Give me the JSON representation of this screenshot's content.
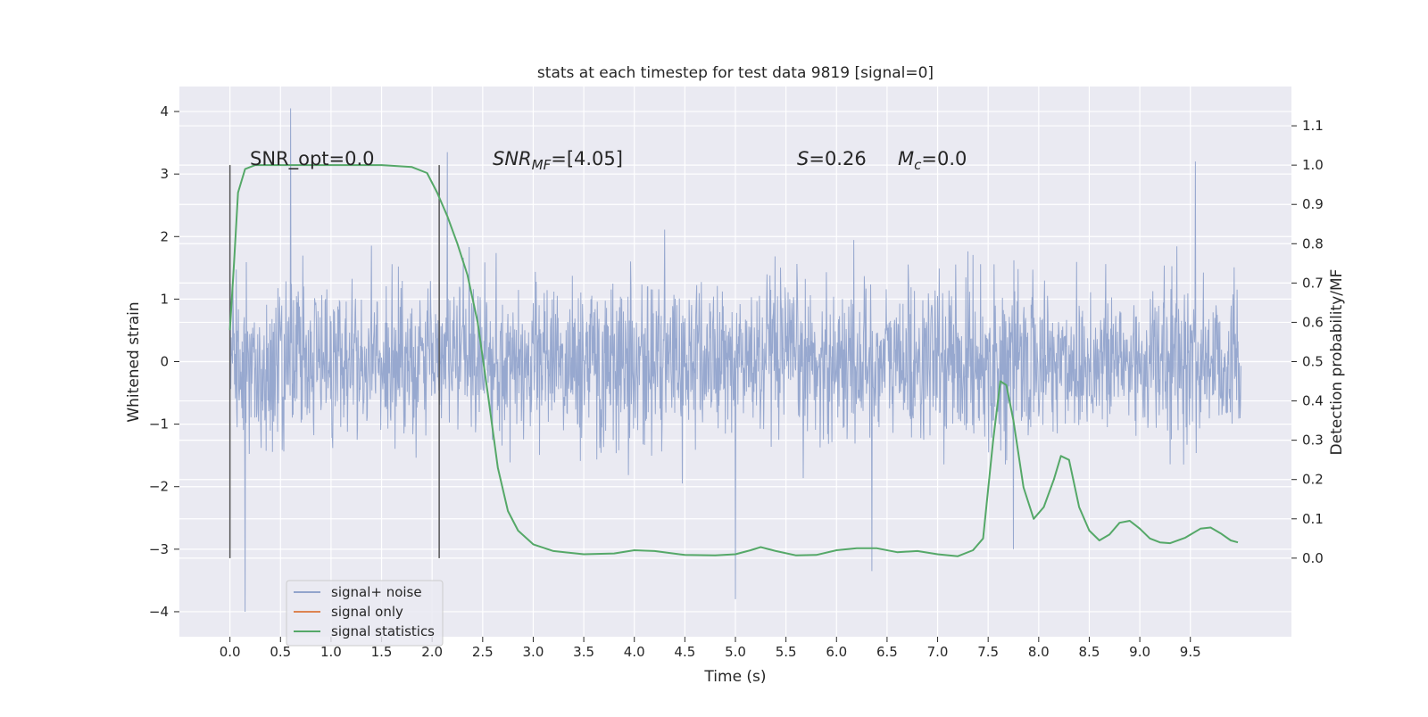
{
  "chart_data": {
    "type": "line",
    "title": "stats at each timestep for test data 9819 [signal=0]",
    "xlabel": "Time (s)",
    "ylabel": "Whitened strain",
    "y2label": "Detection probability/MF",
    "xlim": [
      -0.5,
      10.5
    ],
    "ylim": [
      -4.4,
      4.4
    ],
    "y2lim": [
      -0.2,
      1.2
    ],
    "x_ticks": [
      "0.0",
      "0.5",
      "1.0",
      "1.5",
      "2.0",
      "2.5",
      "3.0",
      "3.5",
      "4.0",
      "4.5",
      "5.0",
      "5.5",
      "6.0",
      "6.5",
      "7.0",
      "7.5",
      "8.0",
      "8.5",
      "9.0",
      "9.5"
    ],
    "y_ticks": [
      "−4",
      "−3",
      "−2",
      "−1",
      "0",
      "1",
      "2",
      "3",
      "4"
    ],
    "y2_ticks": [
      "0.0",
      "0.1",
      "0.2",
      "0.3",
      "0.4",
      "0.5",
      "0.6",
      "0.7",
      "0.8",
      "0.9",
      "1.0",
      "1.1"
    ],
    "grid": true,
    "legend_placement": "lower-left",
    "annotations": {
      "snr_opt": "SNR_opt=0.0",
      "snr_mf_base": "SNR",
      "snr_mf_sub": "MF",
      "snr_mf_value": "=[4.05]",
      "s_label": "S",
      "s_value": "=0.26",
      "mc_base": "M",
      "mc_sub": "c",
      "mc_value": "=0.0"
    },
    "vertical_markers": [
      0.0,
      2.07
    ],
    "vertical_marker_y2_range": [
      0.0,
      1.0
    ],
    "series": [
      {
        "name": "signal+ noise",
        "color": "#92a4cc",
        "axis": "left",
        "x_range": [
          0.0,
          10.0
        ],
        "sigma": 0.62,
        "spikes": [
          [
            0.6,
            4.05
          ],
          [
            0.15,
            -4.0
          ],
          [
            5.0,
            -3.8
          ],
          [
            6.35,
            -3.35
          ],
          [
            2.15,
            3.35
          ],
          [
            9.55,
            3.2
          ],
          [
            7.75,
            -3.0
          ]
        ]
      },
      {
        "name": "signal only",
        "color": "#dd8452",
        "axis": "left",
        "x": [],
        "y": []
      },
      {
        "name": "signal statistics",
        "color": "#55a868",
        "axis": "right",
        "x": [
          0.0,
          0.04,
          0.08,
          0.15,
          0.25,
          0.4,
          0.6,
          1.0,
          1.5,
          1.8,
          1.95,
          2.05,
          2.15,
          2.25,
          2.35,
          2.45,
          2.55,
          2.65,
          2.75,
          2.85,
          3.0,
          3.2,
          3.5,
          3.8,
          4.0,
          4.2,
          4.5,
          4.8,
          5.0,
          5.15,
          5.25,
          5.4,
          5.6,
          5.8,
          6.0,
          6.2,
          6.4,
          6.6,
          6.8,
          7.0,
          7.2,
          7.35,
          7.45,
          7.55,
          7.62,
          7.68,
          7.75,
          7.85,
          7.95,
          8.05,
          8.15,
          8.22,
          8.3,
          8.4,
          8.5,
          8.6,
          8.7,
          8.8,
          8.9,
          9.0,
          9.1,
          9.2,
          9.3,
          9.45,
          9.6,
          9.7,
          9.8,
          9.9,
          9.97
        ],
        "y": [
          0.58,
          0.75,
          0.93,
          0.99,
          1.0,
          1.0,
          1.0,
          1.0,
          1.0,
          0.995,
          0.98,
          0.93,
          0.87,
          0.8,
          0.72,
          0.6,
          0.42,
          0.23,
          0.12,
          0.07,
          0.035,
          0.018,
          0.01,
          0.012,
          0.02,
          0.018,
          0.008,
          0.007,
          0.01,
          0.02,
          0.028,
          0.018,
          0.007,
          0.008,
          0.02,
          0.025,
          0.025,
          0.015,
          0.018,
          0.01,
          0.005,
          0.02,
          0.05,
          0.3,
          0.45,
          0.44,
          0.35,
          0.18,
          0.1,
          0.13,
          0.2,
          0.26,
          0.25,
          0.13,
          0.07,
          0.045,
          0.06,
          0.09,
          0.095,
          0.075,
          0.05,
          0.04,
          0.038,
          0.052,
          0.075,
          0.078,
          0.063,
          0.045,
          0.04
        ]
      }
    ]
  }
}
